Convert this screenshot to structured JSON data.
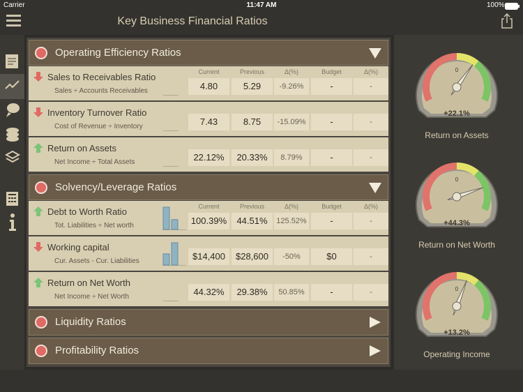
{
  "status_bar": {
    "carrier": "Carrier",
    "time": "11:47 AM",
    "battery": "100%"
  },
  "header": {
    "title": "Key Business Financial Ratios"
  },
  "sections": [
    {
      "title": "Operating Efficiency Ratios",
      "expanded": true,
      "columns": [
        "Current",
        "Previous",
        "Δ(%)",
        "Budget",
        "Δ(%)"
      ],
      "rows": [
        {
          "name": "Sales to Receivables Ratio",
          "formula": "Sales ÷ Accounts Receivables",
          "trend": "down",
          "cells": [
            "4.80",
            "5.29",
            "-9.26%",
            "-",
            "-"
          ]
        },
        {
          "name": "Inventory Turnover Ratio",
          "formula": "Cost of Revenue ÷ Inventory",
          "trend": "down",
          "cells": [
            "7.43",
            "8.75",
            "-15.09%",
            "-",
            "-"
          ]
        },
        {
          "name": "Return on Assets",
          "formula": "Net Income ÷ Total Assets",
          "trend": "up",
          "cells": [
            "22.12%",
            "20.33%",
            "8.79%",
            "-",
            "-"
          ]
        }
      ]
    },
    {
      "title": "Solvency/Leverage Ratios",
      "expanded": true,
      "columns": [
        "Current",
        "Previous",
        "Δ(%)",
        "Budget",
        "Δ(%)"
      ],
      "rows": [
        {
          "name": "Debt to Worth Ratio",
          "formula": "Tot. Liabilities ÷ Net worth",
          "trend": "up",
          "bars": [
            100.39,
            44.51
          ],
          "cells": [
            "100.39%",
            "44.51%",
            "125.52%",
            "-",
            "-"
          ]
        },
        {
          "name": "Working capital",
          "formula": "Cur. Assets - Cur. Liabilities",
          "trend": "down",
          "bars": [
            14400,
            28600
          ],
          "cells": [
            "$14,400",
            "$28,600",
            "-50%",
            "$0",
            "-"
          ]
        },
        {
          "name": "Return on Net Worth",
          "formula": "Net Income ÷ Net Worth",
          "trend": "up",
          "cells": [
            "44.32%",
            "29.38%",
            "50.85%",
            "-",
            "-"
          ]
        }
      ]
    },
    {
      "title": "Liquidity Ratios",
      "expanded": false
    },
    {
      "title": "Profitability Ratios",
      "expanded": false
    }
  ],
  "gauges": [
    {
      "label": "Return on Assets",
      "value": 22.1,
      "value_label": "+22.1%",
      "zero_label": "0"
    },
    {
      "label": "Return on Net Worth",
      "value": 44.3,
      "value_label": "+44.3%",
      "zero_label": "0"
    },
    {
      "label": "Operating Income",
      "value": 13.2,
      "value_label": "+13.2%",
      "zero_label": "0"
    }
  ]
}
